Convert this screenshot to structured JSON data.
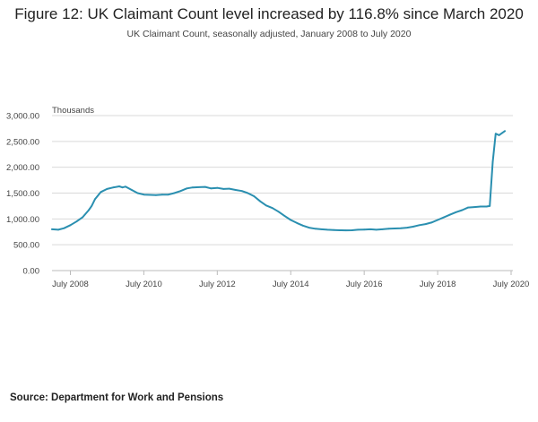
{
  "title": "Figure 12: UK Claimant Count level increased by 116.8% since March 2020",
  "subtitle": "UK Claimant Count, seasonally adjusted, January 2008 to July 2020",
  "source": "Source: Department for Work and Pensions",
  "colors": {
    "line": "#2a8fb0",
    "grid": "#d9d9d9",
    "axis": "#bbbbbb",
    "text": "#444444"
  },
  "chart_data": {
    "type": "line",
    "title": "Figure 12: UK Claimant Count level increased by 116.8% since March 2020",
    "subtitle": "UK Claimant Count, seasonally adjusted, January 2008 to July 2020",
    "ylabel": "Thousands",
    "xlabel": "",
    "x_range": [
      2008.0,
      2020.5
    ],
    "ylim": [
      0,
      3000
    ],
    "grid": true,
    "legend": "none",
    "y_ticks": [
      {
        "value": 0,
        "label": "0.00"
      },
      {
        "value": 500,
        "label": "500.00"
      },
      {
        "value": 1000,
        "label": "1,000.00"
      },
      {
        "value": 1500,
        "label": "1,500.00"
      },
      {
        "value": 2000,
        "label": "2,000.00"
      },
      {
        "value": 2500,
        "label": "2,500.00"
      },
      {
        "value": 3000,
        "label": "3,000.00"
      }
    ],
    "x_ticks": [
      {
        "value": 2008.5,
        "label": "July 2008"
      },
      {
        "value": 2010.5,
        "label": "July 2010"
      },
      {
        "value": 2012.5,
        "label": "July 2012"
      },
      {
        "value": 2014.5,
        "label": "July 2014"
      },
      {
        "value": 2016.5,
        "label": "July 2016"
      },
      {
        "value": 2018.5,
        "label": "July 2018"
      },
      {
        "value": 2020.5,
        "label": "July 2020"
      }
    ],
    "series": [
      {
        "name": "UK Claimant Count",
        "points": [
          [
            2008.0,
            800
          ],
          [
            2008.17,
            790
          ],
          [
            2008.33,
            820
          ],
          [
            2008.5,
            880
          ],
          [
            2008.67,
            950
          ],
          [
            2008.83,
            1030
          ],
          [
            2009.0,
            1170
          ],
          [
            2009.08,
            1250
          ],
          [
            2009.17,
            1380
          ],
          [
            2009.33,
            1520
          ],
          [
            2009.5,
            1580
          ],
          [
            2009.67,
            1610
          ],
          [
            2009.83,
            1630
          ],
          [
            2009.92,
            1610
          ],
          [
            2010.0,
            1625
          ],
          [
            2010.17,
            1560
          ],
          [
            2010.33,
            1500
          ],
          [
            2010.5,
            1470
          ],
          [
            2010.67,
            1465
          ],
          [
            2010.83,
            1460
          ],
          [
            2011.0,
            1470
          ],
          [
            2011.17,
            1470
          ],
          [
            2011.33,
            1500
          ],
          [
            2011.5,
            1540
          ],
          [
            2011.67,
            1590
          ],
          [
            2011.83,
            1610
          ],
          [
            2012.0,
            1615
          ],
          [
            2012.17,
            1620
          ],
          [
            2012.33,
            1590
          ],
          [
            2012.5,
            1600
          ],
          [
            2012.67,
            1580
          ],
          [
            2012.83,
            1585
          ],
          [
            2013.0,
            1560
          ],
          [
            2013.17,
            1540
          ],
          [
            2013.33,
            1500
          ],
          [
            2013.5,
            1440
          ],
          [
            2013.67,
            1340
          ],
          [
            2013.83,
            1260
          ],
          [
            2014.0,
            1210
          ],
          [
            2014.17,
            1140
          ],
          [
            2014.33,
            1060
          ],
          [
            2014.5,
            980
          ],
          [
            2014.67,
            920
          ],
          [
            2014.83,
            870
          ],
          [
            2015.0,
            830
          ],
          [
            2015.17,
            810
          ],
          [
            2015.33,
            800
          ],
          [
            2015.5,
            790
          ],
          [
            2015.67,
            785
          ],
          [
            2015.83,
            780
          ],
          [
            2016.0,
            778
          ],
          [
            2016.17,
            780
          ],
          [
            2016.33,
            790
          ],
          [
            2016.5,
            795
          ],
          [
            2016.67,
            800
          ],
          [
            2016.83,
            790
          ],
          [
            2017.0,
            800
          ],
          [
            2017.17,
            810
          ],
          [
            2017.33,
            815
          ],
          [
            2017.5,
            820
          ],
          [
            2017.67,
            830
          ],
          [
            2017.83,
            850
          ],
          [
            2018.0,
            880
          ],
          [
            2018.17,
            900
          ],
          [
            2018.33,
            930
          ],
          [
            2018.5,
            980
          ],
          [
            2018.67,
            1030
          ],
          [
            2018.83,
            1080
          ],
          [
            2019.0,
            1130
          ],
          [
            2019.17,
            1170
          ],
          [
            2019.33,
            1220
          ],
          [
            2019.5,
            1230
          ],
          [
            2019.67,
            1240
          ],
          [
            2019.83,
            1240
          ],
          [
            2019.92,
            1250
          ],
          [
            2020.0,
            2100
          ],
          [
            2020.08,
            2650
          ],
          [
            2020.17,
            2620
          ],
          [
            2020.25,
            2660
          ],
          [
            2020.33,
            2700
          ]
        ]
      }
    ]
  }
}
